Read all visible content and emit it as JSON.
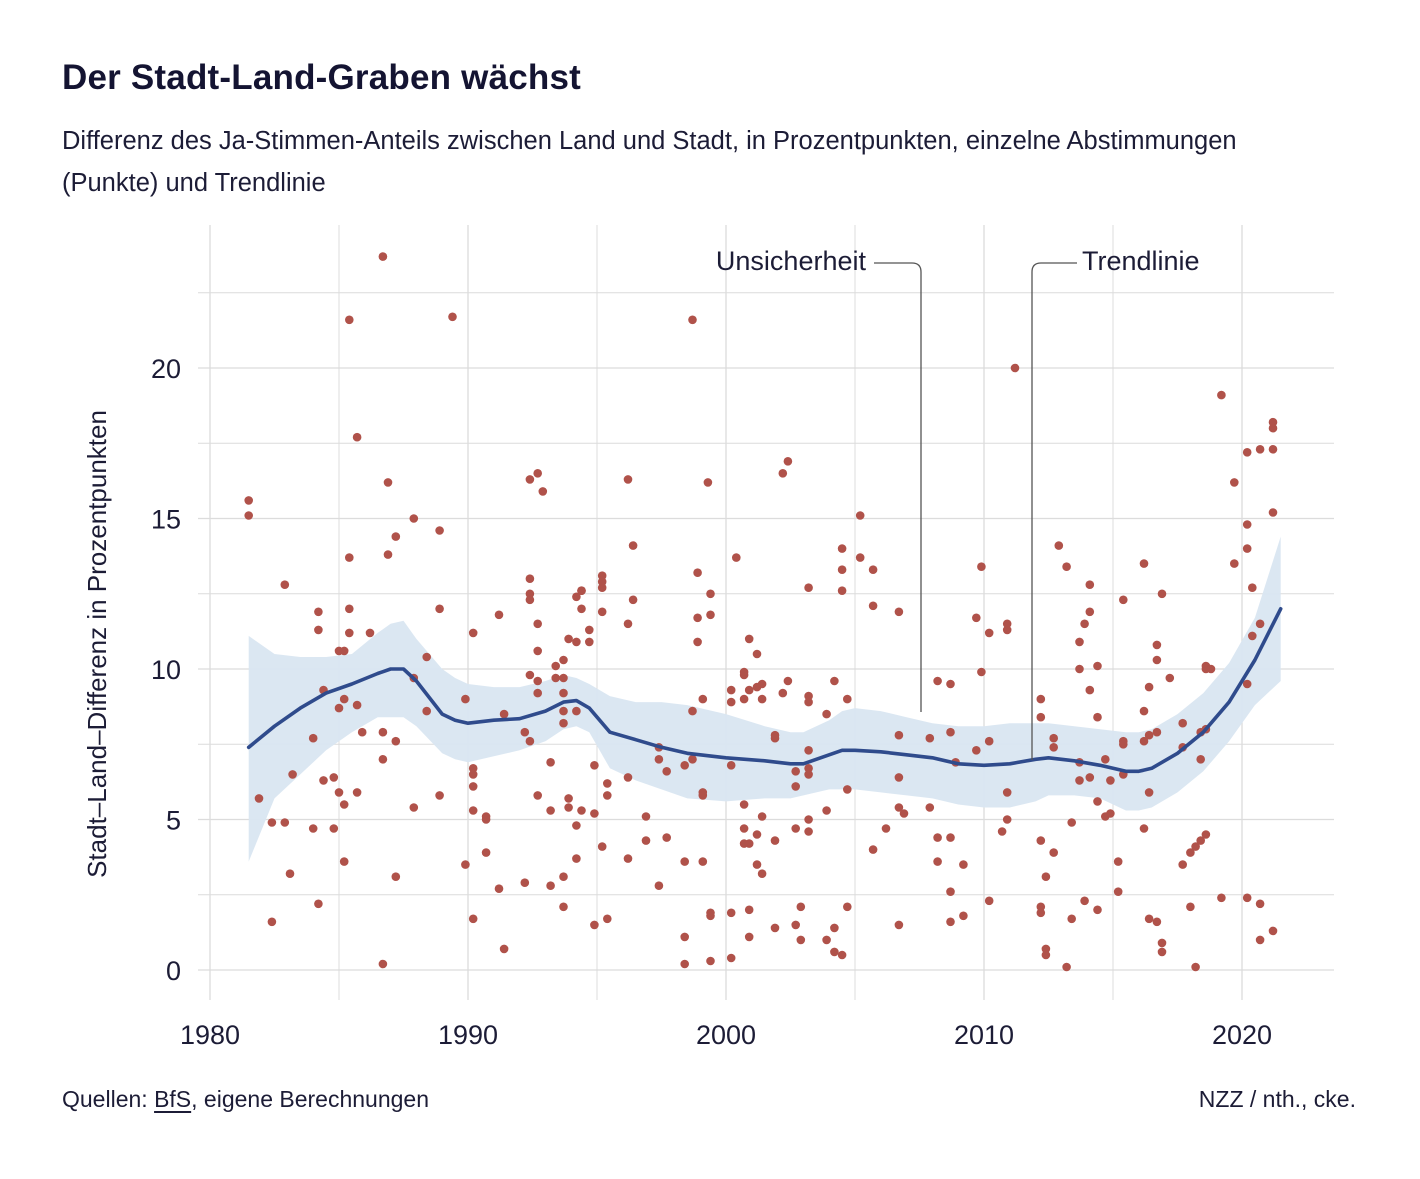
{
  "title": "Der Stadt-Land-Graben wächst",
  "subtitle": "Differenz des Ja-Stimmen-Anteils zwischen Land und Stadt, in Prozentpunkten, einzelne Abstimmungen (Punkte) und Trendlinie",
  "footer": {
    "source_prefix": "Quellen:",
    "source_link": "BfS",
    "source_suffix": ", eigene Berechnungen",
    "credit": "NZZ / nth., cke."
  },
  "chart_data": {
    "type": "scatter",
    "title": "Der Stadt-Land-Graben wächst",
    "ylabel": "Stadt–Land–Differenz in Prozentpunkten",
    "xlabel": "",
    "xlim": [
      1980,
      2023.5
    ],
    "ylim": [
      -0.8,
      24.5
    ],
    "x_ticks": [
      1980,
      1990,
      2000,
      2010,
      2020
    ],
    "y_ticks": [
      0,
      5,
      10,
      15,
      20
    ],
    "grid": true,
    "annotations": [
      {
        "text": "Unsicherheit",
        "x_text": 2001.4,
        "y_text": 23.1
      },
      {
        "text": "Trendlinie",
        "x_text": 2006.2,
        "y_text": 23.1
      }
    ],
    "colors": {
      "points": "#b0524a",
      "trend": "#2f4b8c",
      "band": "#d9e6f1",
      "grid": "#dcdcdc",
      "text": "#1c1c36"
    },
    "trend": {
      "x": [
        1981.5,
        1982.5,
        1983.5,
        1984.5,
        1985.5,
        1986.5,
        1987,
        1987.5,
        1988,
        1989,
        1989.5,
        1990,
        1991,
        1992,
        1993,
        1993.7,
        1994.2,
        1994.7,
        1995.5,
        1996.5,
        1997.5,
        1998.5,
        2000,
        2001.5,
        2002.5,
        2003,
        2004,
        2004.5,
        2005,
        2006,
        2007,
        2008,
        2009,
        2010,
        2011,
        2012,
        2012.5,
        2013.5,
        2014.5,
        2015.5,
        2016,
        2016.5,
        2017.5,
        2018.5,
        2019.5,
        2020.5,
        2021.5
      ],
      "y": [
        7.4,
        8.1,
        8.7,
        9.2,
        9.5,
        9.85,
        10.0,
        10.0,
        9.6,
        8.5,
        8.3,
        8.2,
        8.3,
        8.35,
        8.6,
        8.9,
        8.95,
        8.7,
        7.9,
        7.65,
        7.4,
        7.2,
        7.05,
        6.95,
        6.85,
        6.85,
        7.15,
        7.3,
        7.3,
        7.25,
        7.15,
        7.05,
        6.85,
        6.8,
        6.85,
        7.0,
        7.05,
        6.95,
        6.8,
        6.6,
        6.6,
        6.7,
        7.2,
        7.9,
        8.9,
        10.3,
        12.0
      ]
    },
    "band_upper": [
      11.1,
      10.5,
      10.4,
      10.4,
      10.5,
      11.2,
      11.5,
      11.6,
      11.0,
      10.0,
      9.7,
      9.5,
      9.4,
      9.4,
      9.6,
      9.8,
      9.7,
      9.5,
      9.1,
      8.9,
      8.9,
      8.8,
      8.5,
      8.1,
      7.9,
      7.9,
      8.3,
      8.6,
      8.7,
      8.6,
      8.4,
      8.2,
      8.1,
      8.1,
      8.2,
      8.2,
      8.2,
      8.1,
      8.0,
      7.9,
      7.9,
      8.0,
      8.5,
      9.2,
      10.2,
      11.7,
      14.4
    ],
    "band_lower": [
      3.6,
      5.7,
      6.5,
      7.3,
      7.9,
      8.4,
      8.4,
      8.4,
      8.1,
      7.2,
      7.0,
      6.9,
      7.1,
      7.3,
      7.6,
      8.0,
      8.1,
      7.9,
      6.7,
      6.3,
      6.0,
      5.7,
      5.6,
      5.7,
      5.7,
      5.8,
      6.0,
      6.0,
      6.0,
      5.9,
      5.8,
      5.7,
      5.5,
      5.4,
      5.4,
      5.6,
      5.8,
      5.8,
      5.7,
      5.3,
      5.3,
      5.4,
      5.9,
      6.6,
      7.6,
      8.8,
      9.6
    ],
    "points": [
      [
        1981.5,
        15.6
      ],
      [
        1981.5,
        15.1
      ],
      [
        1981.9,
        5.7
      ],
      [
        1982.4,
        4.9
      ],
      [
        1982.4,
        1.6
      ],
      [
        1982.9,
        4.9
      ],
      [
        1982.9,
        12.8
      ],
      [
        1983.1,
        3.2
      ],
      [
        1983.2,
        6.5
      ],
      [
        1984,
        7.7
      ],
      [
        1984,
        4.7
      ],
      [
        1984.2,
        11.9
      ],
      [
        1984.2,
        11.3
      ],
      [
        1984.2,
        2.2
      ],
      [
        1984.4,
        9.3
      ],
      [
        1984.4,
        6.3
      ],
      [
        1984.8,
        6.4
      ],
      [
        1984.8,
        4.7
      ],
      [
        1985.0,
        8.7
      ],
      [
        1985.0,
        10.6
      ],
      [
        1985.0,
        5.9
      ],
      [
        1985.2,
        9.0
      ],
      [
        1985.2,
        5.5
      ],
      [
        1985.2,
        3.6
      ],
      [
        1985.2,
        10.6
      ],
      [
        1985.4,
        21.6
      ],
      [
        1985.4,
        13.7
      ],
      [
        1985.4,
        12.0
      ],
      [
        1985.4,
        11.2
      ],
      [
        1985.7,
        17.7
      ],
      [
        1985.7,
        8.8
      ],
      [
        1985.7,
        5.9
      ],
      [
        1985.9,
        7.9
      ],
      [
        1986.2,
        11.2
      ],
      [
        1986.7,
        23.7
      ],
      [
        1986.7,
        7.9
      ],
      [
        1986.7,
        7.0
      ],
      [
        1986.7,
        0.2
      ],
      [
        1986.9,
        16.2
      ],
      [
        1986.9,
        13.8
      ],
      [
        1987.2,
        14.4
      ],
      [
        1987.2,
        7.6
      ],
      [
        1987.2,
        3.1
      ],
      [
        1987.9,
        15.0
      ],
      [
        1987.9,
        9.7
      ],
      [
        1987.9,
        5.4
      ],
      [
        1988.4,
        10.4
      ],
      [
        1988.4,
        8.6
      ],
      [
        1988.9,
        14.6
      ],
      [
        1988.9,
        12.0
      ],
      [
        1988.9,
        5.8
      ],
      [
        1989.4,
        21.7
      ],
      [
        1989.9,
        9.0
      ],
      [
        1989.9,
        3.5
      ],
      [
        1990.2,
        11.2
      ],
      [
        1990.2,
        6.7
      ],
      [
        1990.2,
        6.5
      ],
      [
        1990.2,
        6.1
      ],
      [
        1990.2,
        5.3
      ],
      [
        1990.2,
        1.7
      ],
      [
        1990.7,
        5.1
      ],
      [
        1990.7,
        5.0
      ],
      [
        1990.7,
        3.9
      ],
      [
        1991.2,
        11.8
      ],
      [
        1991.2,
        2.7
      ],
      [
        1991.4,
        8.5
      ],
      [
        1991.4,
        0.7
      ],
      [
        1992.2,
        7.9
      ],
      [
        1992.2,
        2.9
      ],
      [
        1992.4,
        16.3
      ],
      [
        1992.4,
        13.0
      ],
      [
        1992.4,
        12.5
      ],
      [
        1992.4,
        12.3
      ],
      [
        1992.4,
        9.8
      ],
      [
        1992.4,
        7.6
      ],
      [
        1992.7,
        16.5
      ],
      [
        1992.7,
        11.5
      ],
      [
        1992.7,
        10.6
      ],
      [
        1992.7,
        9.6
      ],
      [
        1992.7,
        9.2
      ],
      [
        1992.7,
        5.8
      ],
      [
        1992.9,
        15.9
      ],
      [
        1993.2,
        6.9
      ],
      [
        1993.2,
        5.3
      ],
      [
        1993.2,
        2.8
      ],
      [
        1993.4,
        10.1
      ],
      [
        1993.4,
        9.7
      ],
      [
        1993.7,
        10.3
      ],
      [
        1993.7,
        9.7
      ],
      [
        1993.7,
        9.2
      ],
      [
        1993.7,
        8.6
      ],
      [
        1993.7,
        8.2
      ],
      [
        1993.7,
        3.1
      ],
      [
        1993.7,
        2.1
      ],
      [
        1993.9,
        11.0
      ],
      [
        1993.9,
        5.7
      ],
      [
        1993.9,
        5.4
      ],
      [
        1994.2,
        12.4
      ],
      [
        1994.2,
        10.9
      ],
      [
        1994.2,
        8.6
      ],
      [
        1994.2,
        4.8
      ],
      [
        1994.2,
        3.7
      ],
      [
        1994.4,
        12.6
      ],
      [
        1994.4,
        12.0
      ],
      [
        1994.4,
        12.6
      ],
      [
        1994.4,
        5.3
      ],
      [
        1994.7,
        11.3
      ],
      [
        1994.7,
        10.9
      ],
      [
        1994.9,
        6.8
      ],
      [
        1994.9,
        5.2
      ],
      [
        1994.9,
        1.5
      ],
      [
        1995.2,
        13.1
      ],
      [
        1995.2,
        12.9
      ],
      [
        1995.2,
        12.7
      ],
      [
        1995.2,
        11.9
      ],
      [
        1995.2,
        4.1
      ],
      [
        1995.4,
        1.7
      ],
      [
        1995.4,
        5.8
      ],
      [
        1995.4,
        6.2
      ],
      [
        1996.2,
        16.3
      ],
      [
        1996.2,
        11.5
      ],
      [
        1996.2,
        6.4
      ],
      [
        1996.2,
        3.7
      ],
      [
        1996.4,
        14.1
      ],
      [
        1996.4,
        12.3
      ],
      [
        1996.9,
        5.1
      ],
      [
        1996.9,
        4.3
      ],
      [
        1997.4,
        7.4
      ],
      [
        1997.4,
        7.0
      ],
      [
        1997.4,
        2.8
      ],
      [
        1997.7,
        6.6
      ],
      [
        1997.7,
        4.4
      ],
      [
        1998.4,
        6.8
      ],
      [
        1998.4,
        3.6
      ],
      [
        1998.4,
        1.1
      ],
      [
        1998.4,
        0.2
      ],
      [
        1998.7,
        21.6
      ],
      [
        1998.7,
        8.6
      ],
      [
        1998.7,
        7.0
      ],
      [
        1998.9,
        13.2
      ],
      [
        1998.9,
        11.7
      ],
      [
        1998.9,
        10.9
      ],
      [
        1999.1,
        5.8
      ],
      [
        1999.1,
        5.9
      ],
      [
        1999.1,
        3.6
      ],
      [
        1999.1,
        9.0
      ],
      [
        1999.3,
        16.2
      ],
      [
        1999.4,
        12.5
      ],
      [
        1999.4,
        11.8
      ],
      [
        1999.4,
        1.8
      ],
      [
        1999.4,
        1.9
      ],
      [
        1999.4,
        0.3
      ],
      [
        2000.2,
        9.3
      ],
      [
        2000.2,
        8.9
      ],
      [
        2000.2,
        6.8
      ],
      [
        2000.2,
        1.9
      ],
      [
        2000.2,
        0.4
      ],
      [
        2000.4,
        13.7
      ],
      [
        2000.7,
        9.9
      ],
      [
        2000.7,
        9.8
      ],
      [
        2000.7,
        9.0
      ],
      [
        2000.7,
        5.5
      ],
      [
        2000.7,
        4.7
      ],
      [
        2000.7,
        4.2
      ],
      [
        2000.9,
        11.0
      ],
      [
        2000.9,
        9.3
      ],
      [
        2000.9,
        4.2
      ],
      [
        2000.9,
        2.0
      ],
      [
        2000.9,
        1.1
      ],
      [
        2001.2,
        10.5
      ],
      [
        2001.2,
        9.4
      ],
      [
        2001.2,
        4.5
      ],
      [
        2001.2,
        3.5
      ],
      [
        2001.4,
        9.5
      ],
      [
        2001.4,
        9.0
      ],
      [
        2001.4,
        5.1
      ],
      [
        2001.4,
        3.2
      ],
      [
        2001.9,
        7.7
      ],
      [
        2001.9,
        7.8
      ],
      [
        2001.9,
        4.3
      ],
      [
        2001.9,
        1.4
      ],
      [
        2002.2,
        16.5
      ],
      [
        2002.2,
        9.2
      ],
      [
        2002.4,
        16.9
      ],
      [
        2002.4,
        9.6
      ],
      [
        2002.7,
        6.6
      ],
      [
        2002.7,
        6.1
      ],
      [
        2002.7,
        4.7
      ],
      [
        2002.7,
        1.5
      ],
      [
        2002.9,
        2.1
      ],
      [
        2002.9,
        1.0
      ],
      [
        2003.2,
        12.7
      ],
      [
        2003.2,
        9.1
      ],
      [
        2003.2,
        8.9
      ],
      [
        2003.2,
        7.3
      ],
      [
        2003.2,
        6.7
      ],
      [
        2003.2,
        6.5
      ],
      [
        2003.2,
        5.0
      ],
      [
        2003.2,
        4.6
      ],
      [
        2003.9,
        8.5
      ],
      [
        2003.9,
        5.3
      ],
      [
        2003.9,
        1.0
      ],
      [
        2004.2,
        9.6
      ],
      [
        2004.2,
        1.4
      ],
      [
        2004.2,
        0.6
      ],
      [
        2004.5,
        14.0
      ],
      [
        2004.5,
        13.3
      ],
      [
        2004.5,
        12.6
      ],
      [
        2004.5,
        0.5
      ],
      [
        2004.7,
        9.0
      ],
      [
        2004.7,
        6.0
      ],
      [
        2004.7,
        2.1
      ],
      [
        2005.2,
        15.1
      ],
      [
        2005.2,
        13.7
      ],
      [
        2005.7,
        13.3
      ],
      [
        2005.7,
        12.1
      ],
      [
        2005.7,
        4.0
      ],
      [
        2006.2,
        4.7
      ],
      [
        2006.7,
        11.9
      ],
      [
        2006.7,
        7.8
      ],
      [
        2006.7,
        6.4
      ],
      [
        2006.7,
        5.4
      ],
      [
        2006.7,
        1.5
      ],
      [
        2006.9,
        5.2
      ],
      [
        2007.9,
        7.7
      ],
      [
        2007.9,
        5.4
      ],
      [
        2008.2,
        9.6
      ],
      [
        2008.2,
        4.4
      ],
      [
        2008.2,
        3.6
      ],
      [
        2008.7,
        9.5
      ],
      [
        2008.7,
        7.9
      ],
      [
        2008.7,
        4.4
      ],
      [
        2008.7,
        2.6
      ],
      [
        2008.7,
        1.6
      ],
      [
        2008.9,
        6.9
      ],
      [
        2009.2,
        1.8
      ],
      [
        2009.2,
        3.5
      ],
      [
        2009.7,
        11.7
      ],
      [
        2009.7,
        7.3
      ],
      [
        2009.9,
        13.4
      ],
      [
        2009.9,
        9.9
      ],
      [
        2010.2,
        11.2
      ],
      [
        2010.2,
        7.6
      ],
      [
        2010.2,
        2.3
      ],
      [
        2010.7,
        4.6
      ],
      [
        2010.9,
        11.5
      ],
      [
        2010.9,
        11.3
      ],
      [
        2010.9,
        5.9
      ],
      [
        2010.9,
        5.0
      ],
      [
        2011.2,
        20.0
      ],
      [
        2012.2,
        9.0
      ],
      [
        2012.2,
        8.4
      ],
      [
        2012.2,
        4.3
      ],
      [
        2012.2,
        2.1
      ],
      [
        2012.2,
        1.9
      ],
      [
        2012.4,
        3.1
      ],
      [
        2012.4,
        0.5
      ],
      [
        2012.4,
        0.7
      ],
      [
        2012.7,
        7.7
      ],
      [
        2012.7,
        7.4
      ],
      [
        2012.7,
        3.9
      ],
      [
        2012.9,
        14.1
      ],
      [
        2013.2,
        13.4
      ],
      [
        2013.2,
        0.1
      ],
      [
        2013.4,
        4.9
      ],
      [
        2013.4,
        1.7
      ],
      [
        2013.7,
        10.9
      ],
      [
        2013.7,
        10.0
      ],
      [
        2013.7,
        6.9
      ],
      [
        2013.7,
        6.3
      ],
      [
        2013.9,
        11.5
      ],
      [
        2013.9,
        2.3
      ],
      [
        2014.1,
        12.8
      ],
      [
        2014.1,
        11.9
      ],
      [
        2014.1,
        9.3
      ],
      [
        2014.1,
        6.4
      ],
      [
        2014.4,
        10.1
      ],
      [
        2014.4,
        8.4
      ],
      [
        2014.4,
        5.6
      ],
      [
        2014.4,
        2.0
      ],
      [
        2014.7,
        7.0
      ],
      [
        2014.7,
        5.1
      ],
      [
        2014.9,
        6.3
      ],
      [
        2014.9,
        5.2
      ],
      [
        2015.2,
        2.6
      ],
      [
        2015.2,
        3.6
      ],
      [
        2015.4,
        12.3
      ],
      [
        2015.4,
        7.6
      ],
      [
        2015.4,
        7.5
      ],
      [
        2015.4,
        6.5
      ],
      [
        2016.2,
        13.5
      ],
      [
        2016.2,
        8.6
      ],
      [
        2016.2,
        4.7
      ],
      [
        2016.2,
        7.6
      ],
      [
        2016.4,
        9.4
      ],
      [
        2016.4,
        7.8
      ],
      [
        2016.4,
        5.9
      ],
      [
        2016.4,
        1.7
      ],
      [
        2016.7,
        10.8
      ],
      [
        2016.7,
        10.3
      ],
      [
        2016.7,
        7.9
      ],
      [
        2016.7,
        1.6
      ],
      [
        2016.9,
        12.5
      ],
      [
        2016.9,
        0.9
      ],
      [
        2016.9,
        0.6
      ],
      [
        2017.2,
        9.7
      ],
      [
        2017.7,
        8.2
      ],
      [
        2017.7,
        7.4
      ],
      [
        2017.7,
        3.5
      ],
      [
        2018.0,
        3.9
      ],
      [
        2018.0,
        2.1
      ],
      [
        2018.2,
        4.1
      ],
      [
        2018.2,
        0.1
      ],
      [
        2018.4,
        4.3
      ],
      [
        2018.4,
        7.9
      ],
      [
        2018.4,
        7.0
      ],
      [
        2018.6,
        10.0
      ],
      [
        2018.6,
        10.1
      ],
      [
        2018.6,
        8.0
      ],
      [
        2018.6,
        4.5
      ],
      [
        2018.8,
        10.0
      ],
      [
        2019.2,
        19.1
      ],
      [
        2019.2,
        2.4
      ],
      [
        2019.7,
        16.2
      ],
      [
        2019.7,
        13.5
      ],
      [
        2020.2,
        17.2
      ],
      [
        2020.2,
        14.8
      ],
      [
        2020.2,
        14.0
      ],
      [
        2020.2,
        9.5
      ],
      [
        2020.2,
        2.4
      ],
      [
        2020.4,
        11.1
      ],
      [
        2020.4,
        12.7
      ],
      [
        2020.7,
        17.3
      ],
      [
        2020.7,
        11.5
      ],
      [
        2020.7,
        2.2
      ],
      [
        2020.7,
        1.0
      ],
      [
        2021.2,
        18.2
      ],
      [
        2021.2,
        18.0
      ],
      [
        2021.2,
        17.3
      ],
      [
        2021.2,
        15.2
      ],
      [
        2021.2,
        1.3
      ]
    ]
  }
}
